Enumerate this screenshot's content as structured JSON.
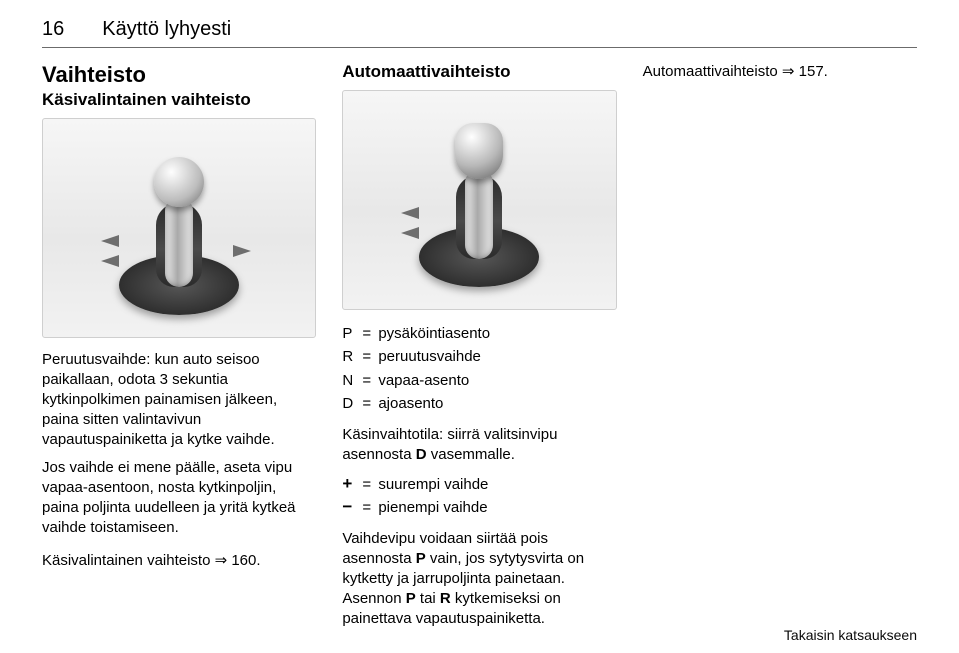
{
  "page_number": "16",
  "chapter_title": "Käyttö lyhyesti",
  "col1": {
    "h2": "Vaihteisto",
    "h3": "Käsivalintainen vaihteisto",
    "para1": "Peruutusvaihde: kun auto seisoo paikallaan, odota 3 sekuntia kytkinpolkimen painamisen jälkeen, paina sitten valintavivun vapautuspainiketta ja kytke vaihde.",
    "para2": "Jos vaihde ei mene päälle, aseta vipu vapaa-asentoon, nosta kytkinpoljin, paina poljinta uudelleen ja yritä kytkeä vaihde toistamiseen.",
    "xref": "Käsivalintainen vaihteisto ⇒ 160."
  },
  "col2": {
    "h3": "Automaattivaihteisto",
    "defs": [
      {
        "k": "P",
        "v": "pysäköintiasento"
      },
      {
        "k": "R",
        "v": "peruutusvaihde"
      },
      {
        "k": "N",
        "v": "vapaa-asento"
      },
      {
        "k": "D",
        "v": "ajoasento"
      }
    ],
    "tilapara_a": "Käsinvaihtotila: siirrä valitsinvipu asennosta ",
    "tilapara_b": "D",
    "tilapara_c": " vasemmalle.",
    "plusminus": [
      {
        "k": "+",
        "v": "suurempi vaihde"
      },
      {
        "k": "−",
        "v": "pienempi vaihde"
      }
    ],
    "para_last_a": "Vaihdevipu voidaan siirtää pois asennosta ",
    "para_last_b": "P",
    "para_last_c": " vain, jos sytytysvirta on kytketty ja jarrupoljinta painetaan. Asennon ",
    "para_last_d": "P",
    "para_last_e": " tai ",
    "para_last_f": "R",
    "para_last_g": " kytkemiseksi on painettava vapautuspainiketta."
  },
  "col3": {
    "xref": "Automaattivaihteisto ⇒ 157."
  },
  "footer": "Takaisin katsaukseen"
}
